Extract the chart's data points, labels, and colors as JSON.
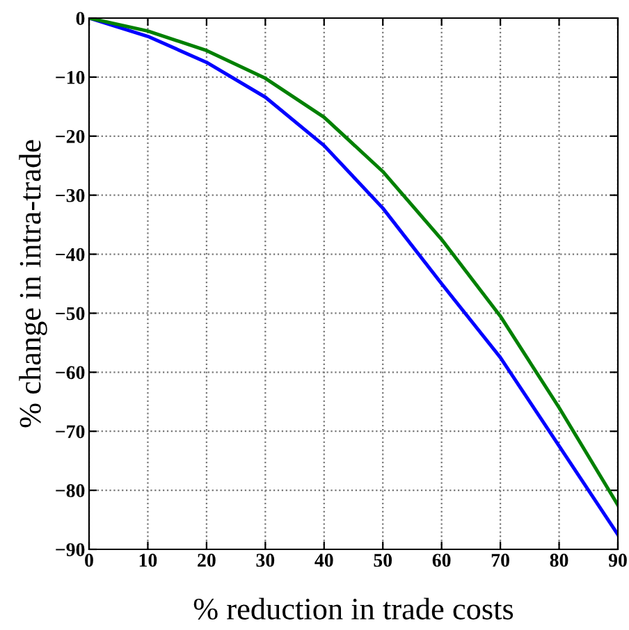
{
  "chart_data": {
    "type": "line",
    "xlabel": "% reduction in trade costs",
    "ylabel": "% change in intra-trade",
    "x": [
      0,
      10,
      20,
      30,
      40,
      50,
      60,
      70,
      80,
      90
    ],
    "series": [
      {
        "color": "#0000ff",
        "values": [
          0,
          -3.1,
          -7.5,
          -13.4,
          -21.6,
          -32.2,
          -45,
          -57.5,
          -72.5,
          -87.5
        ]
      },
      {
        "color": "#008000",
        "values": [
          0,
          -2.2,
          -5.5,
          -10.2,
          -16.8,
          -26,
          -37.5,
          -50.5,
          -66,
          -82.5
        ]
      }
    ],
    "xlim": [
      0,
      90
    ],
    "xticks": [
      0,
      10,
      20,
      30,
      40,
      50,
      60,
      70,
      80,
      90
    ],
    "ylim": [
      -90,
      0
    ],
    "yticks": [
      -90,
      -80,
      -70,
      -60,
      -50,
      -40,
      -30,
      -20,
      -10,
      0
    ],
    "grid": true,
    "line_style": "solid",
    "marker": "none"
  }
}
